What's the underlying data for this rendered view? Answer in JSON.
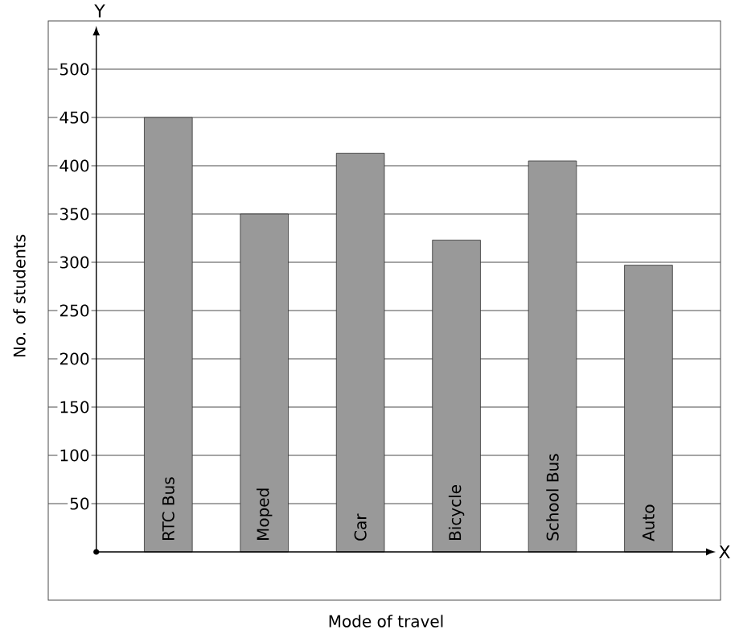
{
  "chart_data": {
    "type": "bar",
    "xlabel": "Mode of travel",
    "ylabel": "No. of students",
    "categories": [
      "RTC Bus",
      "Moped",
      "Car",
      "Bicycle",
      "School Bus",
      "Auto"
    ],
    "values": [
      450,
      350,
      413,
      323,
      405,
      297
    ],
    "color": "#999999",
    "ylim": [
      -50,
      550
    ],
    "yticks": [
      50,
      100,
      150,
      200,
      250,
      300,
      350,
      400,
      450,
      500
    ],
    "grid": true,
    "annotations": [
      "Y",
      "X"
    ]
  }
}
